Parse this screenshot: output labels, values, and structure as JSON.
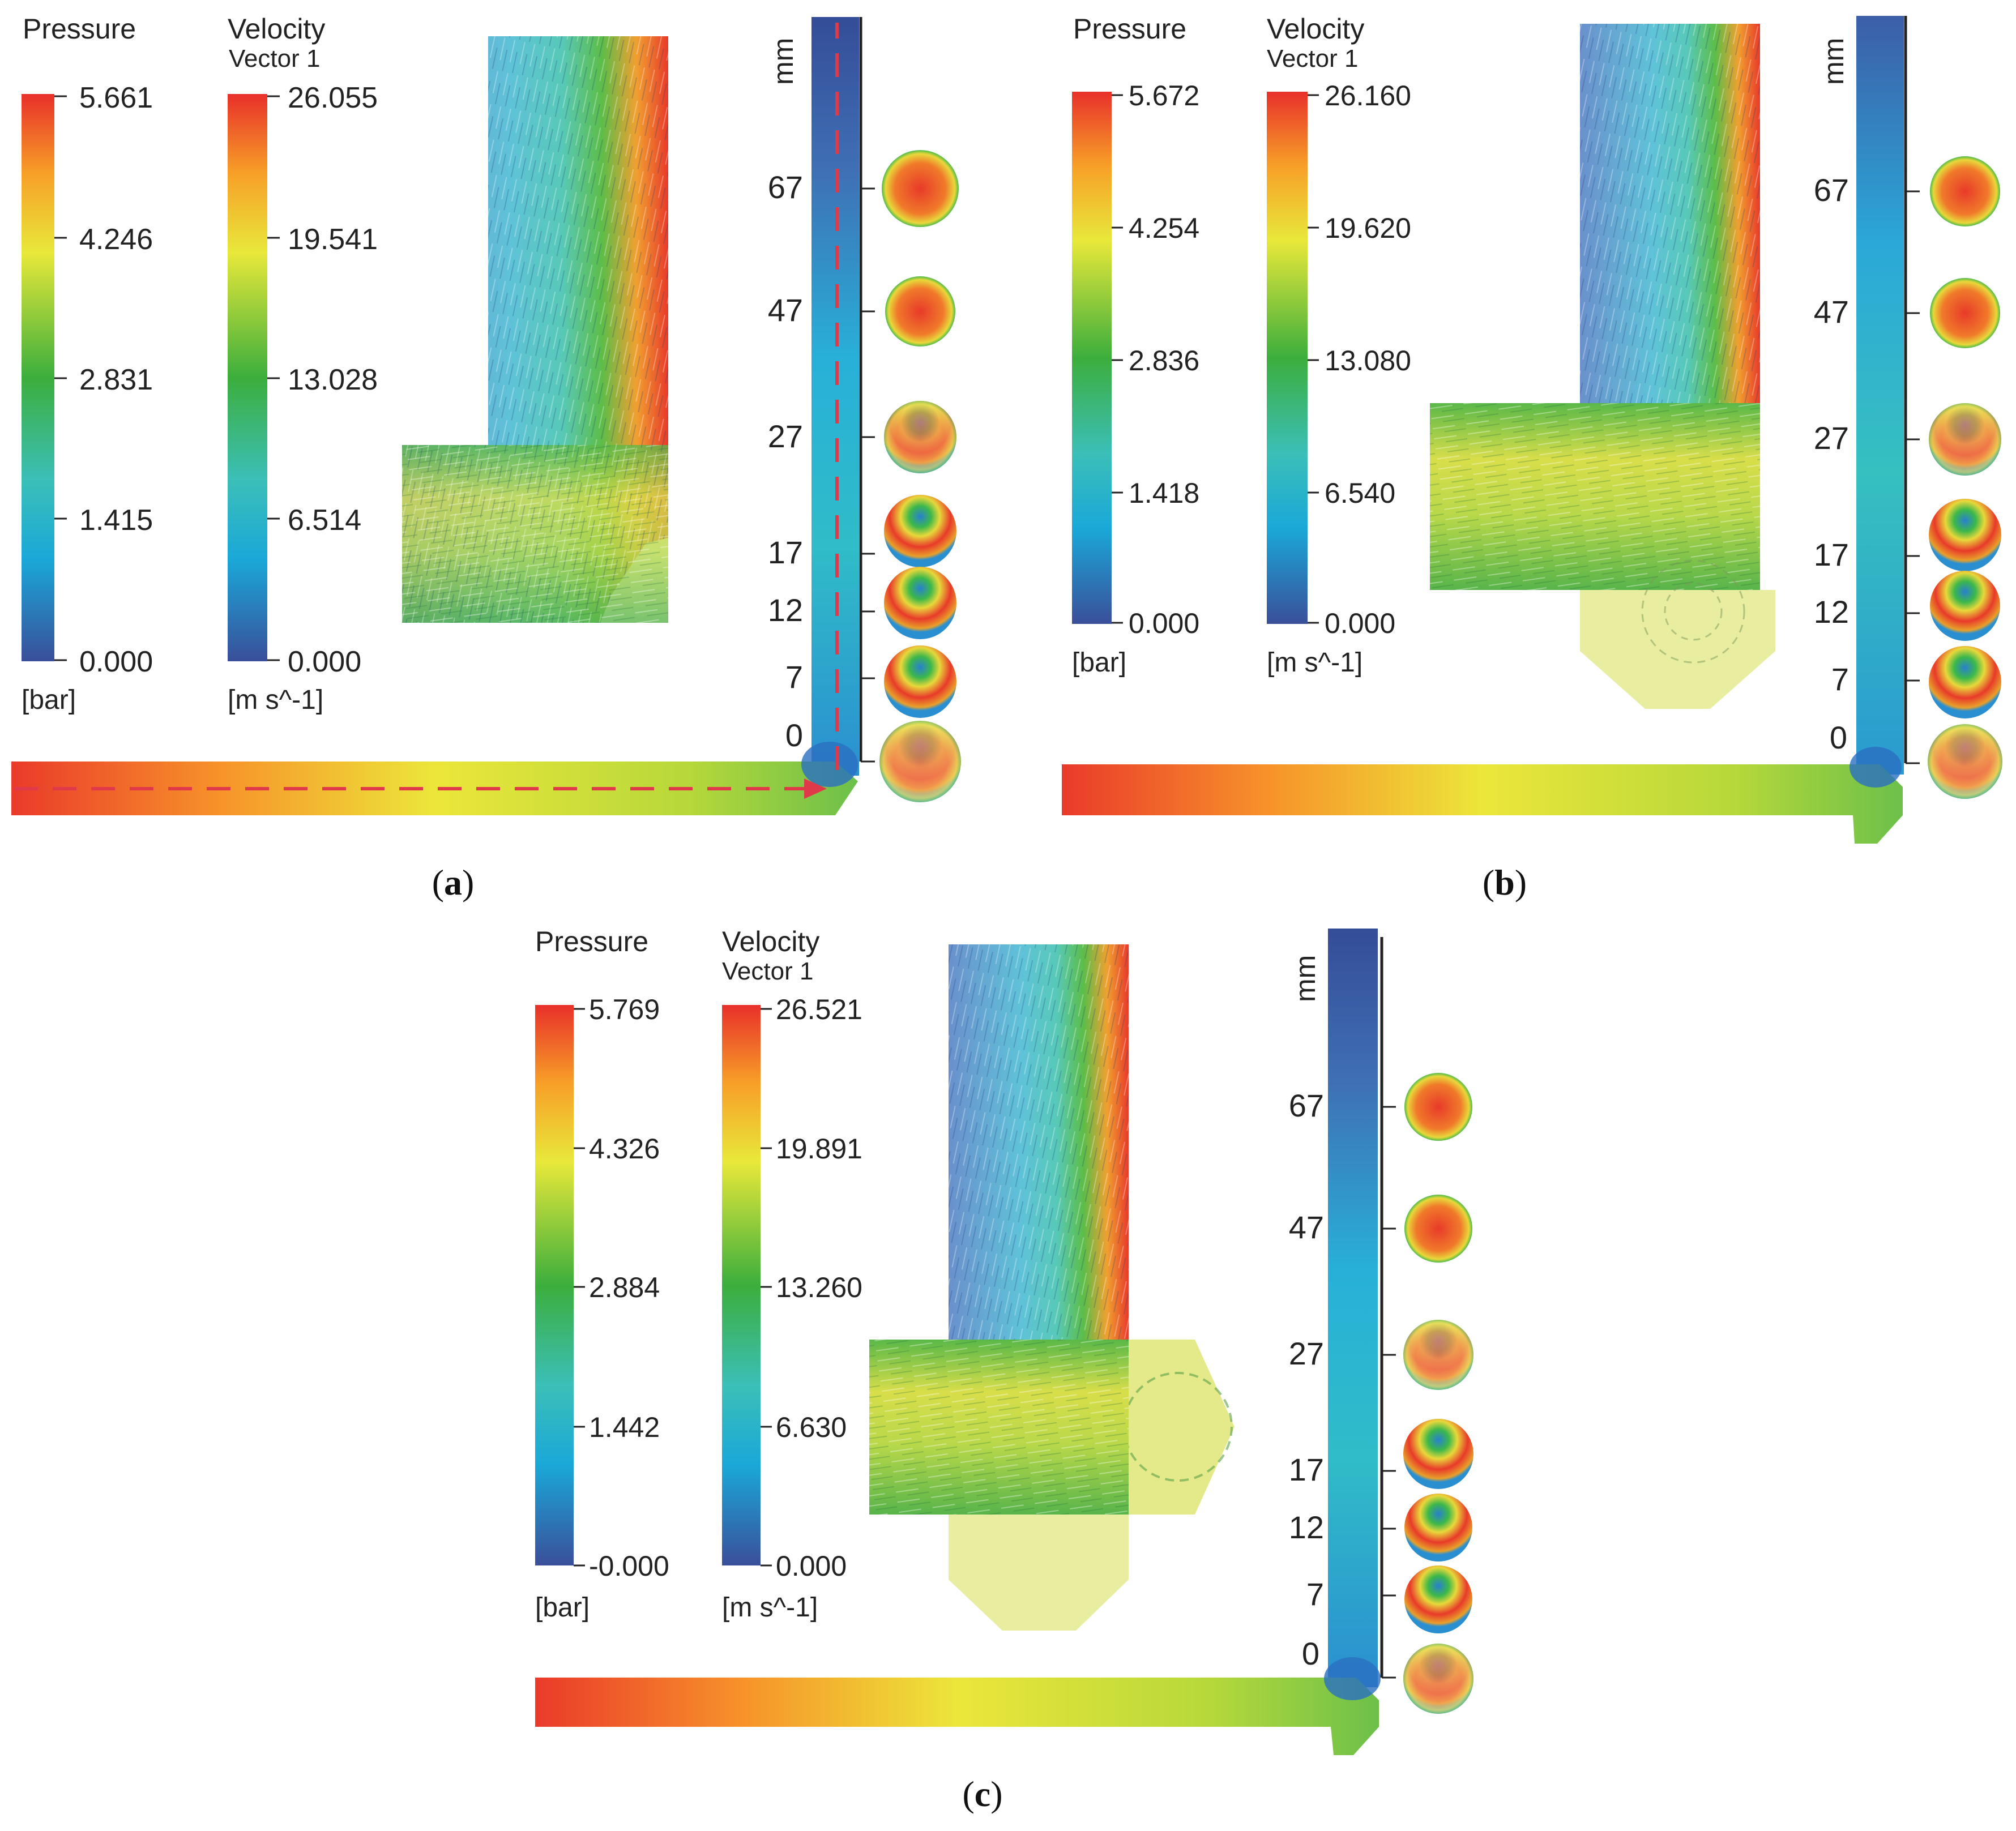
{
  "colors": {
    "cfd_scale": [
      "#3a4f9a",
      "#1aa8d8",
      "#3bbfb8",
      "#3cae3c",
      "#e8e83a",
      "#f7a028",
      "#e8302a"
    ],
    "text": "#222222",
    "flow_arrow": "#e03a4a"
  },
  "common": {
    "pressure_title": "Pressure",
    "velocity_title": "Velocity",
    "velocity_subtitle": "Vector 1",
    "pressure_unit": "[bar]",
    "velocity_unit": "[m s^-1]",
    "axis_unit": "mm",
    "axis_ticks": [
      "67",
      "47",
      "27",
      "17",
      "12",
      "7",
      "0"
    ]
  },
  "panels": [
    {
      "caption_letter": "a",
      "pressure_ticks": [
        "5.661",
        "4.246",
        "2.831",
        "1.415",
        "0.000"
      ],
      "velocity_ticks": [
        "26.055",
        "19.541",
        "13.028",
        "6.514",
        "0.000"
      ],
      "flow_arrows": true,
      "geometry": "basic"
    },
    {
      "caption_letter": "b",
      "pressure_ticks": [
        "5.672",
        "4.254",
        "2.836",
        "1.418",
        "0.000"
      ],
      "velocity_ticks": [
        "26.160",
        "19.620",
        "13.080",
        "6.540",
        "0.000"
      ],
      "flow_arrows": false,
      "geometry": "bottom-chamber"
    },
    {
      "caption_letter": "c",
      "pressure_ticks": [
        "5.769",
        "4.326",
        "2.884",
        "1.442",
        "-0.000"
      ],
      "velocity_ticks": [
        "26.521",
        "19.891",
        "13.260",
        "6.630",
        "0.000"
      ],
      "flow_arrows": false,
      "geometry": "side-and-bottom-chamber"
    }
  ]
}
